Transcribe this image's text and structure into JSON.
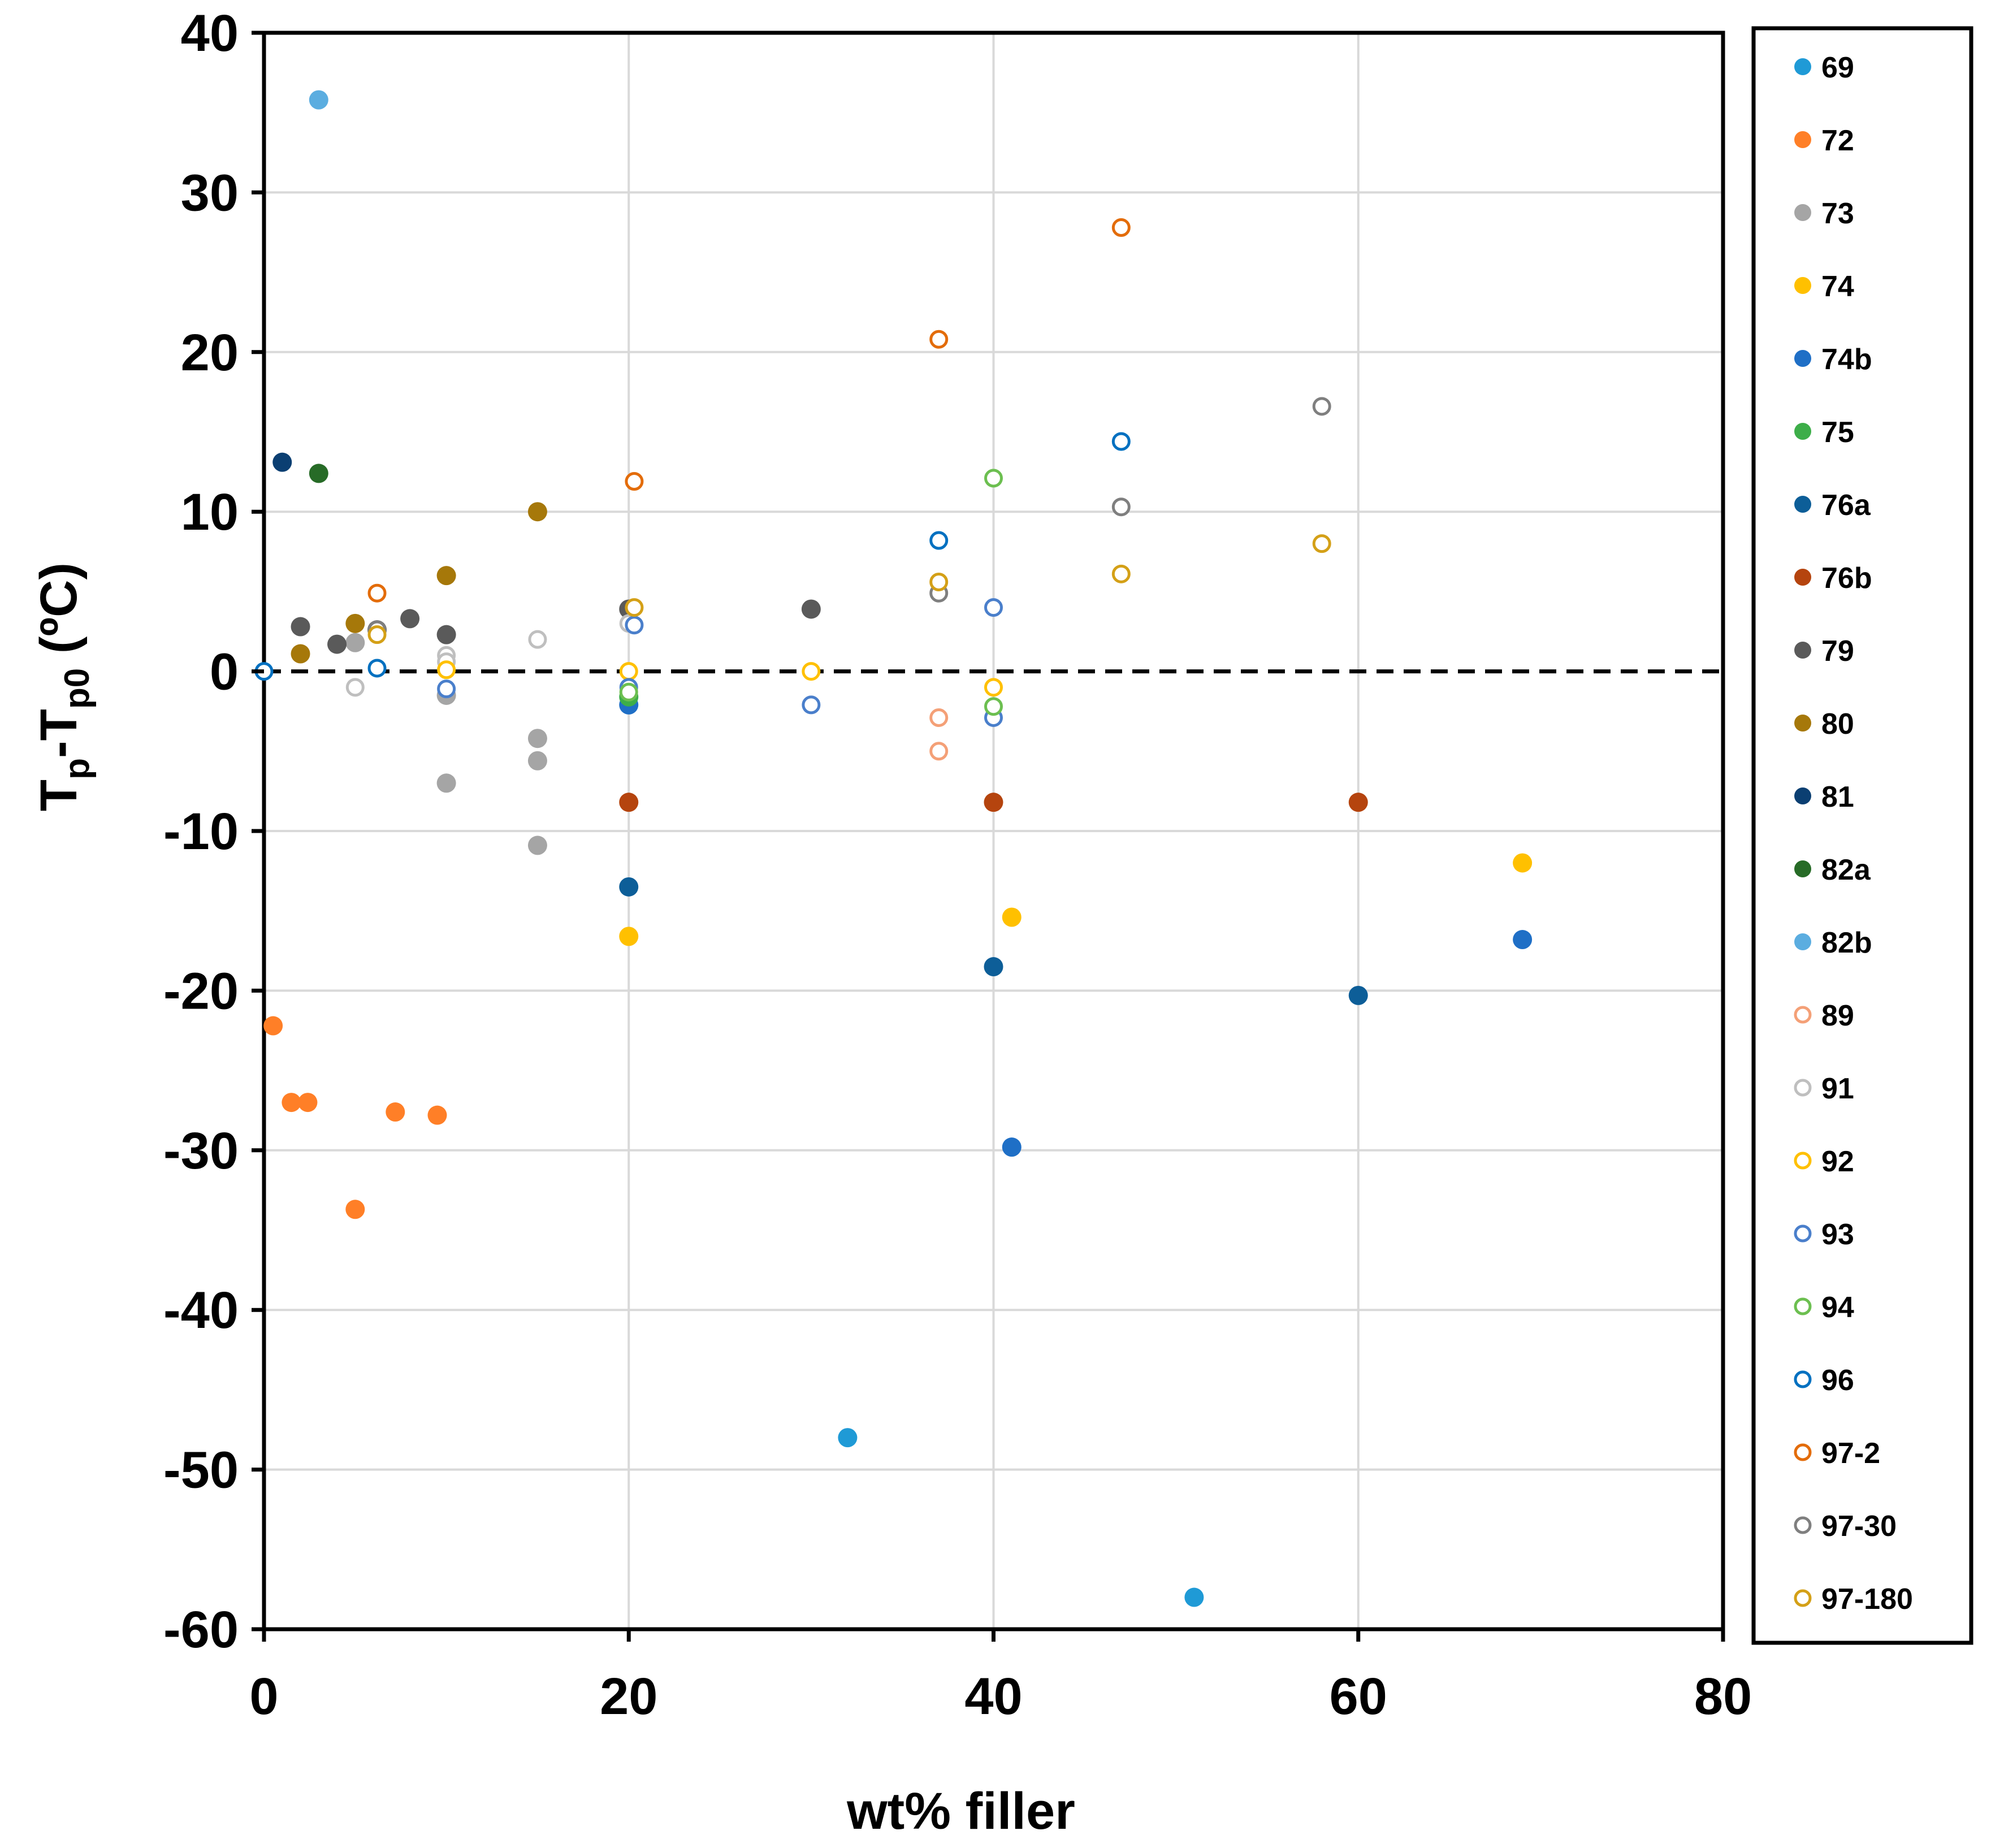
{
  "chart_data": {
    "type": "scatter",
    "title": "",
    "xlabel": "wt% filler",
    "ylabel": {
      "base": "T",
      "sub1": "p",
      "dash": "-T",
      "sub2": "p0",
      "unit": " (ºC)"
    },
    "xlim": [
      0,
      80
    ],
    "ylim": [
      -60,
      40
    ],
    "xticks": [
      "0",
      "20",
      "40",
      "60",
      "80"
    ],
    "yticks": [
      "40",
      "30",
      "20",
      "10",
      "0",
      "-10",
      "-20",
      "-30",
      "-40",
      "-50",
      "-60"
    ],
    "grid": true,
    "reference_line": {
      "y": 0,
      "style": "dashed"
    },
    "legend_position": "right",
    "series": [
      {
        "name": "69",
        "color": "#1F9AD6",
        "filled": true,
        "points": [
          [
            32,
            -48
          ],
          [
            51,
            -58
          ]
        ]
      },
      {
        "name": "72",
        "color": "#FF7F27",
        "filled": true,
        "points": [
          [
            0.5,
            -22.2
          ],
          [
            1.5,
            -27
          ],
          [
            2.4,
            -27
          ],
          [
            5,
            -33.7
          ],
          [
            7.2,
            -27.6
          ],
          [
            9.5,
            -27.8
          ]
        ]
      },
      {
        "name": "73",
        "color": "#A5A5A5",
        "filled": true,
        "points": [
          [
            5,
            1.8
          ],
          [
            10,
            -1.5
          ],
          [
            10,
            -7
          ],
          [
            15,
            -4.2
          ],
          [
            15,
            -5.6
          ],
          [
            15,
            -10.9
          ]
        ]
      },
      {
        "name": "74",
        "color": "#FFC000",
        "filled": true,
        "points": [
          [
            20,
            -16.6
          ],
          [
            41,
            -15.4
          ],
          [
            69,
            -12
          ]
        ]
      },
      {
        "name": "74b",
        "color": "#1F6FC6",
        "filled": true,
        "points": [
          [
            20,
            -2.1
          ],
          [
            41,
            -29.8
          ],
          [
            69,
            -16.8
          ]
        ]
      },
      {
        "name": "75",
        "color": "#3DAE49",
        "filled": true,
        "points": [
          [
            20,
            -1.6
          ]
        ]
      },
      {
        "name": "76a",
        "color": "#0D5E98",
        "filled": true,
        "points": [
          [
            20,
            -13.5
          ],
          [
            40,
            -18.5
          ],
          [
            60,
            -20.3
          ]
        ]
      },
      {
        "name": "76b",
        "color": "#B5440E",
        "filled": true,
        "points": [
          [
            20,
            -8.2
          ],
          [
            40,
            -8.2
          ],
          [
            60,
            -8.2
          ]
        ]
      },
      {
        "name": "79",
        "color": "#5A5A5A",
        "filled": true,
        "points": [
          [
            2,
            2.8
          ],
          [
            4,
            1.7
          ],
          [
            6.2,
            2.6
          ],
          [
            8,
            3.3
          ],
          [
            10,
            2.3
          ],
          [
            20,
            3.9
          ],
          [
            30,
            3.9
          ]
        ]
      },
      {
        "name": "80",
        "color": "#A6780A",
        "filled": true,
        "points": [
          [
            2,
            1.1
          ],
          [
            5,
            3
          ],
          [
            10,
            6
          ],
          [
            15,
            10
          ]
        ]
      },
      {
        "name": "81",
        "color": "#0B3F72",
        "filled": true,
        "points": [
          [
            1,
            13.1
          ]
        ]
      },
      {
        "name": "82a",
        "color": "#276B27",
        "filled": true,
        "points": [
          [
            3,
            12.4
          ]
        ]
      },
      {
        "name": "82b",
        "color": "#5BADE0",
        "filled": true,
        "points": [
          [
            3,
            35.8
          ]
        ]
      },
      {
        "name": "89",
        "color": "#F4A077",
        "filled": false,
        "points": [
          [
            37,
            -2.9
          ],
          [
            37,
            -5
          ]
        ]
      },
      {
        "name": "91",
        "color": "#BFBFBF",
        "filled": false,
        "points": [
          [
            5,
            -1
          ],
          [
            10,
            1
          ],
          [
            10,
            0.6
          ],
          [
            15,
            2
          ],
          [
            20,
            3
          ]
        ]
      },
      {
        "name": "92",
        "color": "#FFC000",
        "filled": false,
        "points": [
          [
            10,
            0.1
          ],
          [
            20,
            0
          ],
          [
            30,
            0
          ],
          [
            40,
            -1
          ]
        ]
      },
      {
        "name": "93",
        "color": "#4A7FCB",
        "filled": false,
        "points": [
          [
            10,
            -1.1
          ],
          [
            20,
            -1
          ],
          [
            20.3,
            2.9
          ],
          [
            30,
            -2.1
          ],
          [
            40,
            4
          ],
          [
            40,
            -2.9
          ]
        ]
      },
      {
        "name": "94",
        "color": "#6CBF50",
        "filled": false,
        "points": [
          [
            20,
            -1.3
          ],
          [
            40,
            -2.2
          ],
          [
            40,
            12.1
          ]
        ]
      },
      {
        "name": "96",
        "color": "#0070C0",
        "filled": false,
        "points": [
          [
            0,
            0
          ],
          [
            6.2,
            0.2
          ],
          [
            37,
            8.2
          ],
          [
            47,
            14.4
          ]
        ]
      },
      {
        "name": "97-2",
        "color": "#E36C0A",
        "filled": false,
        "points": [
          [
            6.2,
            4.9
          ],
          [
            20.3,
            11.9
          ],
          [
            37,
            20.8
          ],
          [
            47,
            27.8
          ]
        ]
      },
      {
        "name": "97-30",
        "color": "#7F7F7F",
        "filled": false,
        "points": [
          [
            6.2,
            2.6
          ],
          [
            37,
            4.9
          ],
          [
            47,
            10.3
          ],
          [
            58,
            16.6
          ]
        ]
      },
      {
        "name": "97-180",
        "color": "#D4A017",
        "filled": false,
        "points": [
          [
            6.2,
            2.3
          ],
          [
            20.3,
            4
          ],
          [
            37,
            5.6
          ],
          [
            47,
            6.1
          ],
          [
            58,
            8
          ]
        ]
      }
    ]
  }
}
